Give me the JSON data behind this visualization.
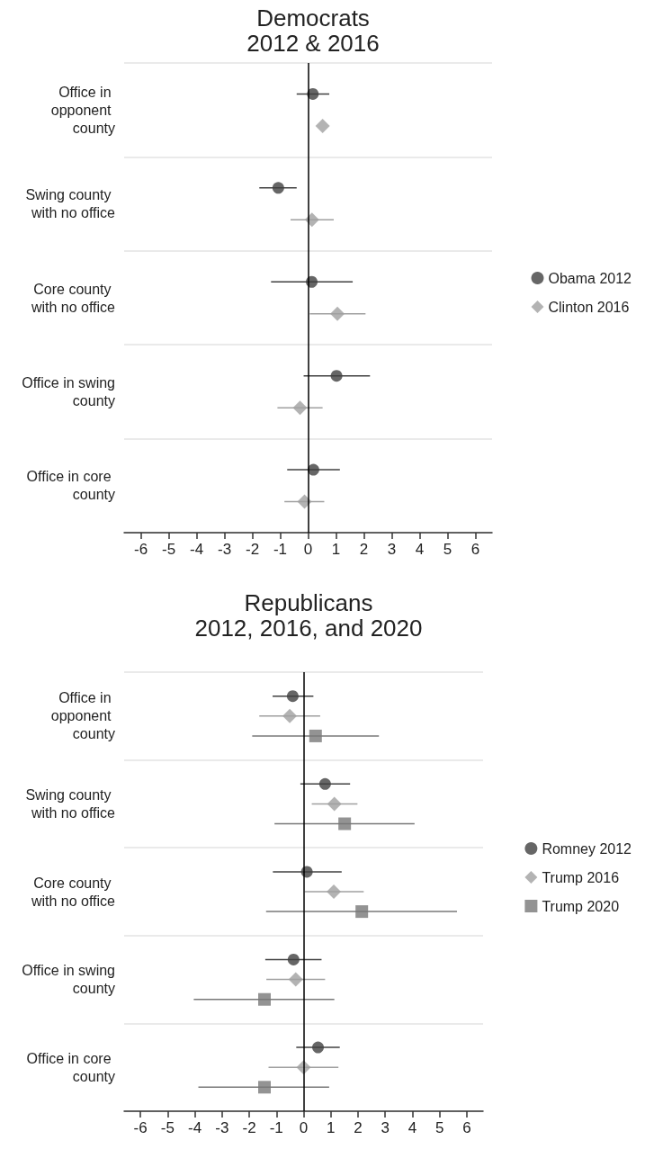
{
  "chart_data": [
    {
      "type": "scatter",
      "title": "Democrats",
      "subtitle": "2012 & 2016",
      "orientation": "horizontal",
      "categories": [
        "Office in opponent county",
        "Swing county with no office",
        "Core county with no office",
        "Office in swing county",
        "Office in core county"
      ],
      "series": [
        {
          "name": "Obama 2012",
          "color": "#404040",
          "marker": "circle",
          "values": [
            0.17,
            -1.07,
            0.13,
            1.02,
            0.19
          ],
          "errors": [
            [
              -0.41,
              0.76
            ],
            [
              -1.75,
              -0.41
            ],
            [
              -1.33,
              1.6
            ],
            [
              -0.16,
              2.22
            ],
            [
              -0.75,
              1.14
            ]
          ]
        },
        {
          "name": "Clinton 2016",
          "color": "#a0a0a0",
          "marker": "diamond",
          "values": [
            0.52,
            0.14,
            1.05,
            -0.29,
            -0.13
          ],
          "errors": [
            null,
            [
              -0.63,
              0.92
            ],
            [
              0.06,
              2.06
            ],
            [
              -1.1,
              0.52
            ],
            [
              -0.85,
              0.58
            ]
          ]
        }
      ],
      "xlim": [
        -6.6,
        6.6
      ],
      "xticks": [
        -6,
        -5,
        -4,
        -3,
        -2,
        -1,
        0,
        1,
        2,
        3,
        4,
        5,
        6
      ],
      "grid": "y",
      "legend": "right",
      "ref_lines": [
        {
          "axis": "x",
          "value": 0,
          "color": "#000000"
        }
      ]
    },
    {
      "type": "scatter",
      "title": "Republicans",
      "subtitle": "2012, 2016, and 2020",
      "orientation": "horizontal",
      "categories": [
        "Office in opponent county",
        "Swing county with no office",
        "Core county with no office",
        "Office in swing county",
        "Office in core county"
      ],
      "series": [
        {
          "name": "Romney 2012",
          "color": "#404040",
          "marker": "circle",
          "values": [
            -0.4,
            0.79,
            0.12,
            -0.37,
            0.53
          ],
          "errors": [
            [
              -1.14,
              0.36
            ],
            [
              -0.12,
              1.71
            ],
            [
              -1.13,
              1.4
            ],
            [
              -1.41,
              0.66
            ],
            [
              -0.27,
              1.33
            ]
          ]
        },
        {
          "name": "Trump 2016",
          "color": "#a0a0a0",
          "marker": "diamond",
          "values": [
            -0.51,
            1.13,
            1.11,
            -0.29,
            0
          ],
          "errors": [
            [
              -1.63,
              0.61
            ],
            [
              0.3,
              1.98
            ],
            [
              0.04,
              2.21
            ],
            [
              -1.37,
              0.79
            ],
            [
              -1.29,
              1.28
            ]
          ]
        },
        {
          "name": "Trump 2020",
          "color": "#787878",
          "marker": "square",
          "values": [
            0.44,
            1.51,
            2.14,
            -1.44,
            -1.44
          ],
          "errors": [
            [
              -1.89,
              2.77
            ],
            [
              -1.07,
              4.08
            ],
            [
              -1.38,
              5.64
            ],
            [
              -4.04,
              1.13
            ],
            [
              -3.87,
              0.94
            ]
          ]
        }
      ],
      "xlim": [
        -6.6,
        6.6
      ],
      "xticks": [
        -6,
        -5,
        -4,
        -3,
        -2,
        -1,
        0,
        1,
        2,
        3,
        4,
        5,
        6
      ],
      "grid": "y",
      "legend": "right",
      "ref_lines": [
        {
          "axis": "x",
          "value": 0,
          "color": "#000000"
        }
      ]
    }
  ]
}
